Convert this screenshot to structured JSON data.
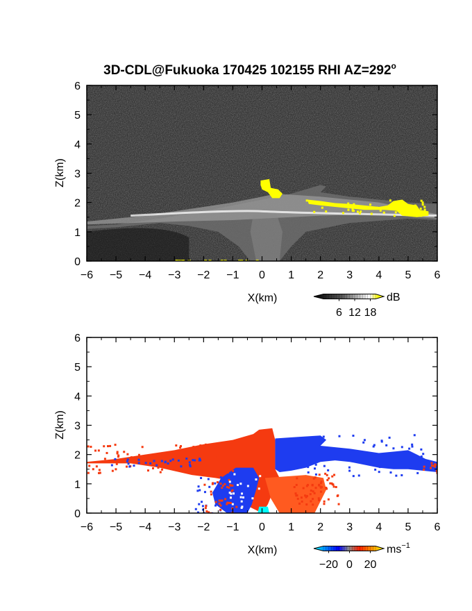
{
  "figure": {
    "title": "3D-CDL@Fukuoka 170425 102155 RHI AZ=292",
    "title_sup": "o"
  },
  "chart_data": [
    {
      "type": "heatmap",
      "panel": "intensity",
      "xlabel": "X(km)",
      "ylabel": "Z(km)",
      "xlim": [
        -6,
        6
      ],
      "ylim": [
        0,
        6
      ],
      "x_ticks": [
        -6,
        -5,
        -4,
        -3,
        -2,
        -1,
        0,
        1,
        2,
        3,
        4,
        5,
        6
      ],
      "y_ticks": [
        0,
        1,
        2,
        3,
        4,
        5,
        6
      ],
      "colorbar": {
        "unit": "dB",
        "ticks": [
          6,
          12,
          18
        ],
        "colors": [
          "#000000",
          "#808080",
          "#ffffff",
          "#ffff00"
        ],
        "range": [
          0,
          20
        ]
      },
      "features": [
        {
          "description": "bright aerosol layer",
          "x_range": [
            -6,
            6
          ],
          "z_center": 1.65,
          "value_db": 14
        },
        {
          "description": "cloud return",
          "x_range": [
            1.5,
            5.7
          ],
          "z_range": [
            1.8,
            2.2
          ],
          "value_db": 20
        },
        {
          "description": "cloud return",
          "x_range": [
            -0.1,
            0.7
          ],
          "z_range": [
            2.2,
            2.9
          ],
          "value_db": 20
        }
      ]
    },
    {
      "type": "heatmap",
      "panel": "doppler_velocity",
      "xlabel": "X(km)",
      "ylabel": "Z(km)",
      "xlim": [
        -6,
        6
      ],
      "ylim": [
        0,
        6
      ],
      "x_ticks": [
        -6,
        -5,
        -4,
        -3,
        -2,
        -1,
        0,
        1,
        2,
        3,
        4,
        5,
        6
      ],
      "y_ticks": [
        0,
        1,
        2,
        3,
        4,
        5,
        6
      ],
      "colorbar": {
        "unit": "ms",
        "unit_sup": "−1",
        "ticks": [
          "−20",
          "0",
          "20"
        ],
        "tick_values": [
          -20,
          0,
          20
        ],
        "colors": [
          "#00ffff",
          "#0000ff",
          "#ff0000",
          "#ffff00"
        ],
        "range": [
          -25,
          25
        ]
      },
      "features": [
        {
          "description": "positive velocity region",
          "x_range": [
            -6,
            0.4
          ],
          "z_range": [
            1.5,
            2.9
          ],
          "value_ms": 12
        },
        {
          "description": "negative velocity region",
          "x_range": [
            0.4,
            6
          ],
          "z_range": [
            1.4,
            2.7
          ],
          "value_ms": -12
        },
        {
          "description": "negative velocity pocket",
          "x_range": [
            -1.5,
            0.1
          ],
          "z_range": [
            0,
            1.5
          ],
          "value_ms": -12
        },
        {
          "description": "positive velocity column",
          "x_range": [
            -0.2,
            2.1
          ],
          "z_range": [
            0,
            1.6
          ],
          "value_ms": 12
        },
        {
          "description": "cyan pocket",
          "x_range": [
            -0.15,
            0.25
          ],
          "z_range": [
            0,
            0.25
          ],
          "value_ms": -22
        }
      ]
    }
  ]
}
